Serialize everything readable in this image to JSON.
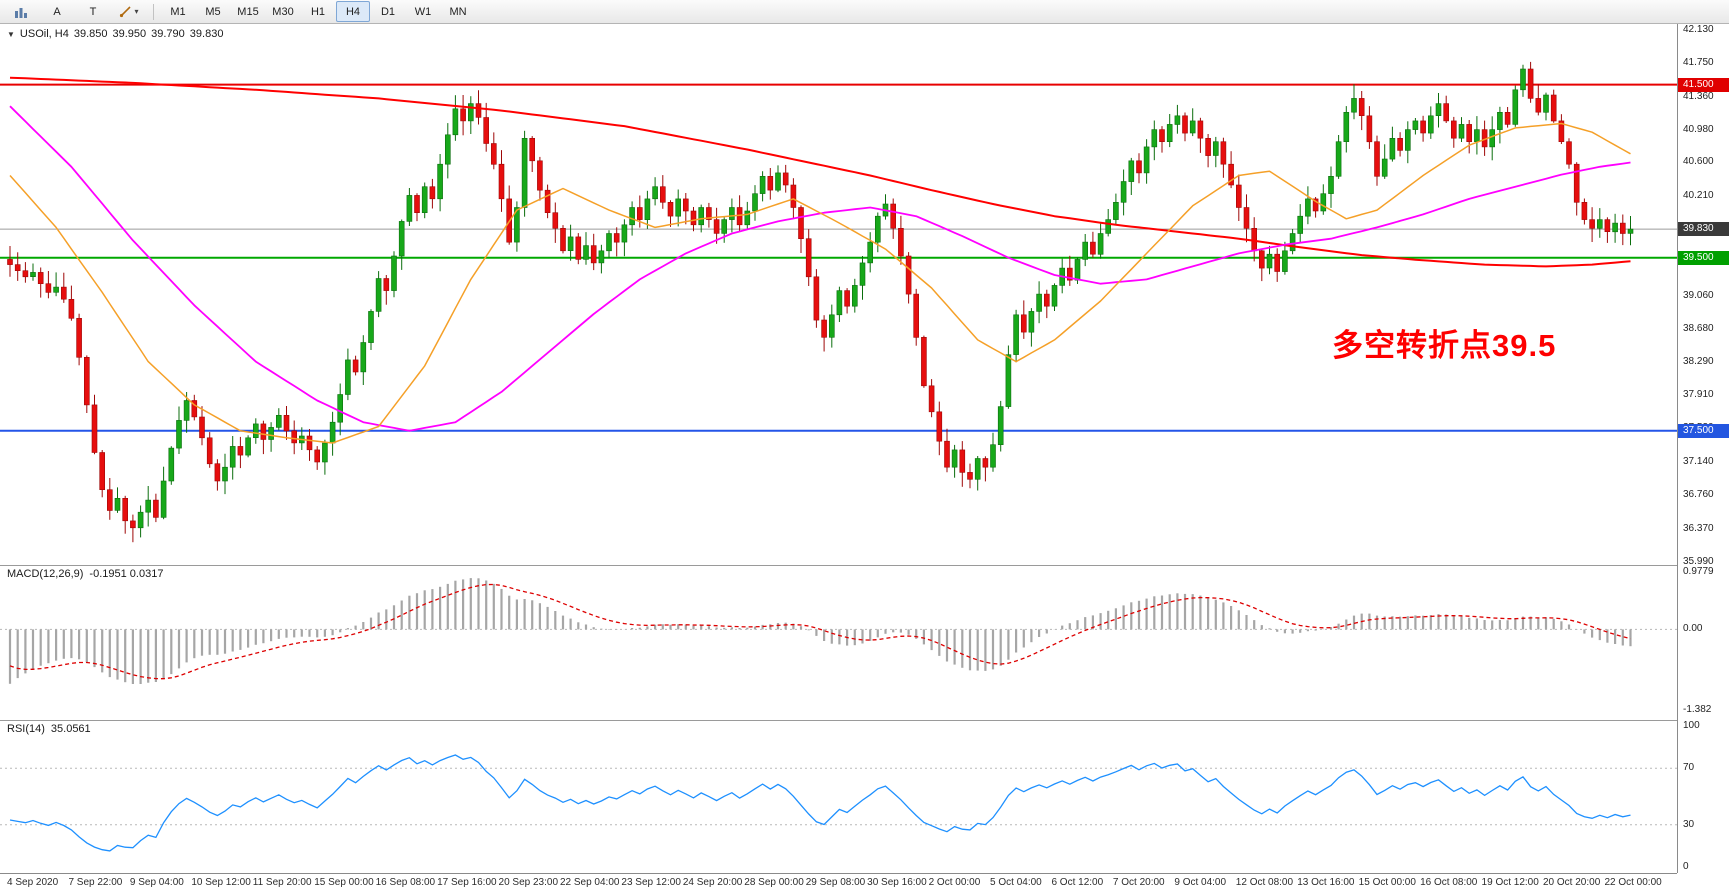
{
  "toolbar": {
    "icons": {
      "charts": "chart-bars-icon",
      "shapes": "shapes-dropdown-icon",
      "dropdown_arrow": "▾"
    },
    "tools": [
      {
        "label": "A"
      },
      {
        "label": "T"
      }
    ],
    "timeframes": [
      "M1",
      "M5",
      "M15",
      "M30",
      "H1",
      "H4",
      "D1",
      "W1",
      "MN"
    ],
    "active_timeframe": "H4"
  },
  "chart": {
    "symbol_line": {
      "symbol": "USOil,",
      "timeframe": "H4",
      "open": "39.850",
      "high": "39.950",
      "low": "39.790",
      "close": "39.830"
    },
    "annotation": {
      "text": "多空转折点39.5",
      "color": "#fe0000"
    },
    "price_axis": {
      "ticks": [
        "42.130",
        "41.750",
        "41.360",
        "40.980",
        "40.600",
        "40.210",
        "39.830",
        "39.440",
        "39.060",
        "38.680",
        "38.290",
        "37.910",
        "37.530",
        "37.140",
        "36.760",
        "36.370",
        "35.990"
      ],
      "badges": [
        {
          "value": "41.500",
          "price": 41.5,
          "color": "#e00000"
        },
        {
          "value": "39.830",
          "price": 39.83,
          "color": "#3a3a3a"
        },
        {
          "value": "39.500",
          "price": 39.5,
          "color": "#00a000"
        },
        {
          "value": "37.500",
          "price": 37.5,
          "color": "#2356e0"
        }
      ]
    },
    "hlines": [
      {
        "price": 41.5,
        "color": "#e80000",
        "width": 2,
        "name": "resistance-41.500"
      },
      {
        "price": 39.83,
        "color": "#9b9b9b",
        "width": 1,
        "name": "current-price-39.830"
      },
      {
        "price": 39.5,
        "color": "#00a800",
        "width": 2,
        "name": "pivot-39.500"
      },
      {
        "price": 37.5,
        "color": "#2455e8",
        "width": 2,
        "name": "support-37.500"
      }
    ]
  },
  "chart_data": {
    "type": "candlestick",
    "title": "USOil H4",
    "ylim": [
      35.99,
      42.13
    ],
    "x_labels": [
      "4 Sep 2020",
      "7 Sep 22:00",
      "9 Sep 04:00",
      "10 Sep 12:00",
      "11 Sep 20:00",
      "15 Sep 00:00",
      "16 Sep 08:00",
      "17 Sep 16:00",
      "20 Sep 23:00",
      "22 Sep 04:00",
      "23 Sep 12:00",
      "24 Sep 20:00",
      "28 Sep 00:00",
      "29 Sep 08:00",
      "30 Sep 16:00",
      "2 Oct 00:00",
      "5 Oct 04:00",
      "6 Oct 12:00",
      "7 Oct 20:00",
      "9 Oct 04:00",
      "12 Oct 08:00",
      "13 Oct 16:00",
      "15 Oct 00:00",
      "16 Oct 08:00",
      "19 Oct 12:00",
      "20 Oct 20:00",
      "22 Oct 00:00"
    ],
    "bars_per_label": 8,
    "open_first": 39.48,
    "closes": [
      39.42,
      39.35,
      39.28,
      39.33,
      39.2,
      39.1,
      39.16,
      39.02,
      38.8,
      38.35,
      37.8,
      37.25,
      36.82,
      36.58,
      36.72,
      36.46,
      36.38,
      36.56,
      36.7,
      36.5,
      36.92,
      37.3,
      37.62,
      37.85,
      37.66,
      37.42,
      37.12,
      36.92,
      37.08,
      37.32,
      37.22,
      37.42,
      37.58,
      37.4,
      37.54,
      37.68,
      37.5,
      37.36,
      37.44,
      37.28,
      37.14,
      37.36,
      37.6,
      37.92,
      38.32,
      38.18,
      38.52,
      38.88,
      39.26,
      39.12,
      39.52,
      39.92,
      40.22,
      40.02,
      40.32,
      40.18,
      40.58,
      40.92,
      41.22,
      41.08,
      41.28,
      41.12,
      40.82,
      40.58,
      40.18,
      39.68,
      40.08,
      40.88,
      40.62,
      40.28,
      40.02,
      39.84,
      39.58,
      39.74,
      39.48,
      39.64,
      39.44,
      39.58,
      39.78,
      39.68,
      39.88,
      40.08,
      39.94,
      40.18,
      40.32,
      40.14,
      39.98,
      40.18,
      40.04,
      39.88,
      40.08,
      39.94,
      39.78,
      39.94,
      40.08,
      39.88,
      40.04,
      40.24,
      40.44,
      40.28,
      40.48,
      40.34,
      40.08,
      39.72,
      39.28,
      38.78,
      38.58,
      38.84,
      39.12,
      38.94,
      39.18,
      39.44,
      39.68,
      39.98,
      40.12,
      39.84,
      39.52,
      39.08,
      38.58,
      38.02,
      37.72,
      37.38,
      37.08,
      37.28,
      37.02,
      36.94,
      37.18,
      37.08,
      37.34,
      37.78,
      38.38,
      38.84,
      38.64,
      38.88,
      39.08,
      38.94,
      39.18,
      39.38,
      39.24,
      39.48,
      39.68,
      39.54,
      39.78,
      39.94,
      40.14,
      40.38,
      40.62,
      40.48,
      40.78,
      40.98,
      40.84,
      41.04,
      41.14,
      40.94,
      41.08,
      40.88,
      40.68,
      40.84,
      40.58,
      40.34,
      40.08,
      39.84,
      39.58,
      39.38,
      39.54,
      39.34,
      39.58,
      39.78,
      39.98,
      40.18,
      40.04,
      40.24,
      40.44,
      40.84,
      41.18,
      41.34,
      41.14,
      40.84,
      40.44,
      40.64,
      40.88,
      40.74,
      40.98,
      41.08,
      40.94,
      41.14,
      41.28,
      41.08,
      40.88,
      41.04,
      40.84,
      40.98,
      40.78,
      40.98,
      41.18,
      41.04,
      41.44,
      41.68,
      41.34,
      41.18,
      41.38,
      41.08,
      40.84,
      40.58,
      40.14,
      39.94,
      39.84,
      39.94,
      39.8,
      39.9,
      39.78,
      39.83
    ],
    "style": {
      "up_color": "#17a81a",
      "up_border": "#0b6e0d",
      "down_color": "#e60e0e",
      "down_border": "#9e0808"
    },
    "moving_averages": [
      {
        "name": "MA-slow",
        "color": "#ff0000",
        "width": 2,
        "points": [
          [
            0,
            41.58
          ],
          [
            16,
            41.52
          ],
          [
            32,
            41.44
          ],
          [
            48,
            41.34
          ],
          [
            64,
            41.2
          ],
          [
            80,
            41.02
          ],
          [
            96,
            40.75
          ],
          [
            104,
            40.6
          ],
          [
            112,
            40.45
          ],
          [
            120,
            40.28
          ],
          [
            128,
            40.12
          ],
          [
            136,
            39.98
          ],
          [
            144,
            39.88
          ],
          [
            152,
            39.8
          ],
          [
            160,
            39.72
          ],
          [
            168,
            39.62
          ],
          [
            176,
            39.53
          ],
          [
            184,
            39.47
          ],
          [
            192,
            39.42
          ],
          [
            200,
            39.4
          ],
          [
            206,
            39.42
          ],
          [
            211,
            39.46
          ]
        ]
      },
      {
        "name": "MA-medium",
        "color": "#ff00ff",
        "width": 1.8,
        "points": [
          [
            0,
            41.25
          ],
          [
            8,
            40.55
          ],
          [
            16,
            39.7
          ],
          [
            24,
            38.95
          ],
          [
            32,
            38.3
          ],
          [
            40,
            37.85
          ],
          [
            46,
            37.6
          ],
          [
            52,
            37.5
          ],
          [
            58,
            37.6
          ],
          [
            64,
            37.95
          ],
          [
            70,
            38.4
          ],
          [
            76,
            38.85
          ],
          [
            82,
            39.25
          ],
          [
            88,
            39.55
          ],
          [
            94,
            39.78
          ],
          [
            100,
            39.92
          ],
          [
            106,
            40.02
          ],
          [
            112,
            40.08
          ],
          [
            118,
            39.98
          ],
          [
            124,
            39.75
          ],
          [
            130,
            39.5
          ],
          [
            136,
            39.3
          ],
          [
            142,
            39.2
          ],
          [
            148,
            39.25
          ],
          [
            154,
            39.4
          ],
          [
            160,
            39.55
          ],
          [
            166,
            39.65
          ],
          [
            172,
            39.72
          ],
          [
            178,
            39.85
          ],
          [
            184,
            40.0
          ],
          [
            190,
            40.18
          ],
          [
            196,
            40.32
          ],
          [
            202,
            40.46
          ],
          [
            207,
            40.55
          ],
          [
            211,
            40.6
          ]
        ]
      },
      {
        "name": "MA-fast",
        "color": "#f5a028",
        "width": 1.5,
        "points": [
          [
            0,
            40.45
          ],
          [
            6,
            39.85
          ],
          [
            12,
            39.1
          ],
          [
            18,
            38.3
          ],
          [
            24,
            37.8
          ],
          [
            30,
            37.5
          ],
          [
            36,
            37.42
          ],
          [
            42,
            37.36
          ],
          [
            48,
            37.55
          ],
          [
            54,
            38.25
          ],
          [
            60,
            39.25
          ],
          [
            66,
            40.05
          ],
          [
            72,
            40.3
          ],
          [
            78,
            40.05
          ],
          [
            84,
            39.85
          ],
          [
            90,
            39.95
          ],
          [
            96,
            40.0
          ],
          [
            102,
            40.18
          ],
          [
            108,
            39.9
          ],
          [
            114,
            39.6
          ],
          [
            120,
            39.15
          ],
          [
            126,
            38.55
          ],
          [
            131,
            38.3
          ],
          [
            136,
            38.55
          ],
          [
            142,
            39.0
          ],
          [
            148,
            39.55
          ],
          [
            154,
            40.1
          ],
          [
            160,
            40.45
          ],
          [
            164,
            40.5
          ],
          [
            170,
            40.15
          ],
          [
            174,
            39.95
          ],
          [
            178,
            40.05
          ],
          [
            184,
            40.45
          ],
          [
            190,
            40.8
          ],
          [
            196,
            41.0
          ],
          [
            202,
            41.05
          ],
          [
            206,
            40.95
          ],
          [
            211,
            40.7
          ]
        ]
      }
    ],
    "indicators": [
      {
        "type": "macd",
        "label": "MACD(12,26,9)",
        "values_label": "-0.1951 0.0317",
        "params": [
          12,
          26,
          9
        ],
        "axis": [
          "0.9779",
          "0.00",
          "-1.382"
        ],
        "range": [
          0.9779,
          -1.382
        ],
        "histogram_color": "#a6a6a6",
        "histogram_border": "#7d7d7d",
        "signal_color": "#dd0000",
        "seeds": {
          "ema_fast_offset": -0.5,
          "ema_slow_offset": 0.55,
          "signal_seed": -0.55
        }
      },
      {
        "type": "rsi",
        "label": "RSI(14)",
        "value_label": "35.0561",
        "period": 14,
        "axis": [
          "100",
          "70",
          "30",
          "0"
        ],
        "levels": [
          70,
          30
        ],
        "line_color": "#1e90ff",
        "range": [
          0,
          100
        ],
        "seeds": {
          "avg_gain": 0.06,
          "avg_loss": 0.12
        }
      }
    ]
  }
}
